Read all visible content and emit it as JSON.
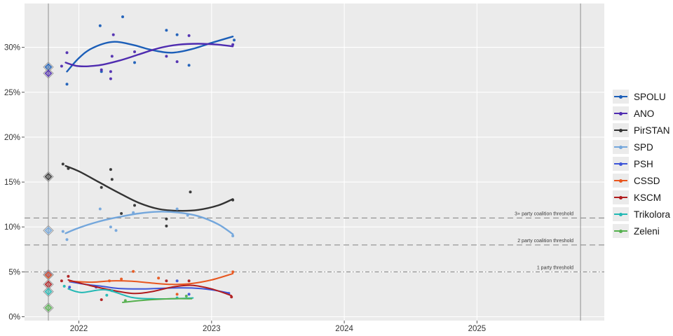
{
  "chart_data": {
    "type": "scatter",
    "title": "",
    "xlabel": "",
    "ylabel": "",
    "x_axis": {
      "tick_years": [
        2022,
        2023,
        2024,
        2025
      ],
      "tick_labels": [
        "2022",
        "2023",
        "2024",
        "2025"
      ],
      "range_years": [
        2021.59,
        2025.96
      ],
      "grid": true
    },
    "y_axis": {
      "tick_values": [
        0,
        5,
        10,
        15,
        20,
        25,
        30
      ],
      "tick_labels": [
        "0%",
        "5%",
        "10%",
        "15%",
        "20%",
        "25%",
        "30%"
      ],
      "range": [
        -0.45,
        34.9
      ],
      "grid": true
    },
    "panel_color": "#ebebeb",
    "grid_color": "#ffffff",
    "axis_text_color": "#333333",
    "threshold_line_color": "#8c8c8c",
    "election_line_color": "#9e9e9e",
    "thresholds": [
      {
        "label": "3+ party coalition threshold",
        "value": 11,
        "style": "dashed"
      },
      {
        "label": "2 party coalition threshold",
        "value": 8,
        "style": "dashed"
      },
      {
        "label": "1 party threshold",
        "value": 5,
        "style": "dash-dot"
      }
    ],
    "election_vlines": [
      {
        "name": "election-2021",
        "year": 2021.77
      },
      {
        "name": "election-2025",
        "year": 2025.78
      }
    ],
    "legend_position": "right",
    "series": [
      {
        "name": "SPOLU",
        "color": "#1b5eb8",
        "election_result": 27.8,
        "trend": [
          [
            2021.91,
            27.3
          ],
          [
            2022.0,
            28.8
          ],
          [
            2022.1,
            29.9
          ],
          [
            2022.25,
            30.6
          ],
          [
            2022.4,
            30.3
          ],
          [
            2022.55,
            29.7
          ],
          [
            2022.7,
            29.4
          ],
          [
            2022.85,
            29.8
          ],
          [
            2023.0,
            30.5
          ],
          [
            2023.16,
            31.2
          ]
        ],
        "scatter": [
          [
            2021.91,
            25.9
          ],
          [
            2022.16,
            32.4
          ],
          [
            2022.17,
            27.3
          ],
          [
            2022.33,
            33.4
          ],
          [
            2022.42,
            28.3
          ],
          [
            2022.66,
            31.9
          ],
          [
            2022.74,
            31.4
          ],
          [
            2022.83,
            28.0
          ],
          [
            2023.17,
            30.8
          ]
        ]
      },
      {
        "name": "ANO",
        "color": "#4f2cb0",
        "election_result": 27.1,
        "trend": [
          [
            2021.9,
            28.3
          ],
          [
            2022.0,
            27.9
          ],
          [
            2022.15,
            28.0
          ],
          [
            2022.3,
            28.5
          ],
          [
            2022.45,
            29.2
          ],
          [
            2022.6,
            29.9
          ],
          [
            2022.75,
            30.3
          ],
          [
            2022.9,
            30.4
          ],
          [
            2023.05,
            30.3
          ],
          [
            2023.16,
            30.1
          ]
        ],
        "scatter": [
          [
            2021.87,
            27.9
          ],
          [
            2021.91,
            29.4
          ],
          [
            2022.17,
            27.5
          ],
          [
            2022.24,
            27.3
          ],
          [
            2022.24,
            26.5
          ],
          [
            2022.25,
            29.0
          ],
          [
            2022.26,
            31.4
          ],
          [
            2022.42,
            29.5
          ],
          [
            2022.66,
            29.0
          ],
          [
            2022.74,
            28.4
          ],
          [
            2022.83,
            31.3
          ],
          [
            2023.16,
            30.3
          ]
        ]
      },
      {
        "name": "PirSTAN",
        "color": "#333333",
        "election_result": 15.6,
        "trend": [
          [
            2021.9,
            16.8
          ],
          [
            2022.0,
            16.2
          ],
          [
            2022.15,
            15.0
          ],
          [
            2022.3,
            13.8
          ],
          [
            2022.45,
            12.7
          ],
          [
            2022.6,
            12.0
          ],
          [
            2022.75,
            11.8
          ],
          [
            2022.9,
            11.9
          ],
          [
            2023.05,
            12.4
          ],
          [
            2023.16,
            13.1
          ]
        ],
        "scatter": [
          [
            2021.88,
            17.0
          ],
          [
            2021.92,
            16.5
          ],
          [
            2022.17,
            14.4
          ],
          [
            2022.24,
            16.4
          ],
          [
            2022.25,
            15.3
          ],
          [
            2022.32,
            11.5
          ],
          [
            2022.42,
            12.4
          ],
          [
            2022.66,
            10.9
          ],
          [
            2022.66,
            10.1
          ],
          [
            2022.84,
            13.9
          ],
          [
            2023.16,
            13.0
          ]
        ]
      },
      {
        "name": "SPD",
        "color": "#74a7dc",
        "election_result": 9.6,
        "trend": [
          [
            2021.9,
            9.3
          ],
          [
            2022.0,
            9.9
          ],
          [
            2022.15,
            10.6
          ],
          [
            2022.3,
            11.1
          ],
          [
            2022.45,
            11.5
          ],
          [
            2022.6,
            11.7
          ],
          [
            2022.75,
            11.6
          ],
          [
            2022.9,
            11.2
          ],
          [
            2023.05,
            10.3
          ],
          [
            2023.16,
            9.2
          ]
        ],
        "scatter": [
          [
            2021.88,
            9.5
          ],
          [
            2021.91,
            8.6
          ],
          [
            2022.16,
            12.0
          ],
          [
            2022.24,
            10.0
          ],
          [
            2022.28,
            9.6
          ],
          [
            2022.41,
            11.6
          ],
          [
            2022.74,
            12.0
          ],
          [
            2022.82,
            11.3
          ],
          [
            2023.16,
            9.0
          ]
        ]
      },
      {
        "name": "PSH",
        "color": "#3d55d8",
        "election_result": 4.7,
        "trend": [
          [
            2021.93,
            3.9
          ],
          [
            2022.05,
            3.6
          ],
          [
            2022.17,
            3.4
          ],
          [
            2022.3,
            3.15
          ],
          [
            2022.5,
            3.1
          ],
          [
            2022.7,
            3.2
          ],
          [
            2022.85,
            3.2
          ],
          [
            2023.0,
            3.0
          ],
          [
            2023.13,
            2.65
          ]
        ],
        "scatter": [
          [
            2021.93,
            3.3
          ],
          [
            2022.13,
            3.3
          ],
          [
            2022.74,
            4.0
          ],
          [
            2022.83,
            2.5
          ],
          [
            2023.13,
            2.6
          ]
        ]
      },
      {
        "name": "CSSD",
        "color": "#e8561e",
        "election_result": 4.65,
        "trend": [
          [
            2021.93,
            3.95
          ],
          [
            2022.1,
            3.85
          ],
          [
            2022.25,
            4.0
          ],
          [
            2022.4,
            3.95
          ],
          [
            2022.55,
            3.75
          ],
          [
            2022.7,
            3.6
          ],
          [
            2022.85,
            3.7
          ],
          [
            2023.0,
            4.1
          ],
          [
            2023.16,
            4.8
          ]
        ],
        "scatter": [
          [
            2022.23,
            4.0
          ],
          [
            2022.32,
            4.2
          ],
          [
            2022.41,
            5.05
          ],
          [
            2022.6,
            4.3
          ],
          [
            2022.74,
            2.5
          ],
          [
            2023.16,
            5.0
          ]
        ]
      },
      {
        "name": "KSCM",
        "color": "#b01c1e",
        "election_result": 3.6,
        "trend": [
          [
            2021.92,
            4.1
          ],
          [
            2022.05,
            3.6
          ],
          [
            2022.2,
            3.1
          ],
          [
            2022.4,
            2.6
          ],
          [
            2022.55,
            2.8
          ],
          [
            2022.7,
            3.3
          ],
          [
            2022.85,
            3.5
          ],
          [
            2023.0,
            3.1
          ],
          [
            2023.15,
            2.35
          ]
        ],
        "scatter": [
          [
            2021.87,
            4.0
          ],
          [
            2021.92,
            4.5
          ],
          [
            2022.17,
            1.9
          ],
          [
            2022.66,
            4.0
          ],
          [
            2022.83,
            4.0
          ],
          [
            2023.15,
            2.2
          ]
        ]
      },
      {
        "name": "Trikolora",
        "color": "#22b8b4",
        "election_result": 2.8,
        "trend": [
          [
            2021.92,
            3.1
          ],
          [
            2022.02,
            2.7
          ],
          [
            2022.2,
            3.0
          ],
          [
            2022.4,
            2.15
          ],
          [
            2022.55,
            2.0
          ],
          [
            2022.7,
            2.0
          ],
          [
            2022.86,
            2.1
          ]
        ],
        "scatter": [
          [
            2021.89,
            3.4
          ],
          [
            2022.21,
            2.4
          ],
          [
            2022.25,
            2.9
          ],
          [
            2022.74,
            2.1
          ]
        ]
      },
      {
        "name": "Zeleni",
        "color": "#55b04e",
        "election_result": 1.0,
        "trend": [
          [
            2022.33,
            1.6
          ],
          [
            2022.5,
            1.85
          ],
          [
            2022.7,
            2.0
          ],
          [
            2022.85,
            2.0
          ]
        ],
        "scatter": [
          [
            2022.35,
            1.8
          ],
          [
            2022.81,
            2.3
          ]
        ]
      }
    ]
  }
}
